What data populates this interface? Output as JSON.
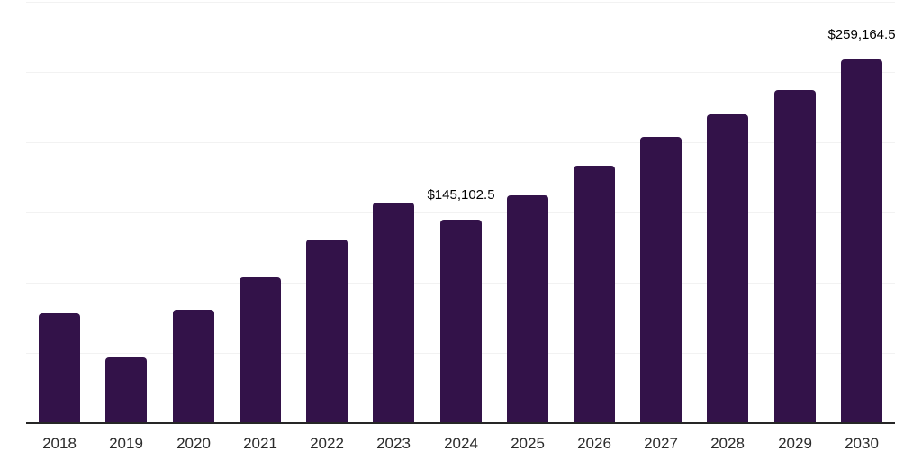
{
  "chart_data": {
    "type": "bar",
    "title": "",
    "xlabel": "",
    "ylabel": "",
    "categories": [
      "2018",
      "2019",
      "2020",
      "2021",
      "2022",
      "2023",
      "2024",
      "2025",
      "2026",
      "2027",
      "2028",
      "2029",
      "2030"
    ],
    "values": [
      78000,
      46500,
      81000,
      104000,
      131000,
      157000,
      145102.5,
      161900,
      183100,
      203600,
      219700,
      237100,
      259164.5
    ],
    "point_labels": [
      "",
      "",
      "",
      "",
      "",
      "",
      "$145,102.5",
      "",
      "",
      "",
      "",
      "",
      "$259,164.5"
    ],
    "ylim": [
      0,
      300000
    ],
    "gridline_step": 50000,
    "grid": "horizontal-only",
    "y_axis_labels_visible": false,
    "legend": "none",
    "colors": {
      "bar": "#331249",
      "axis_line": "#262626",
      "gridline": "#f2f2f2",
      "tick_label": "#2b2b2b",
      "value_label": "#000000",
      "background": "#ffffff"
    }
  }
}
